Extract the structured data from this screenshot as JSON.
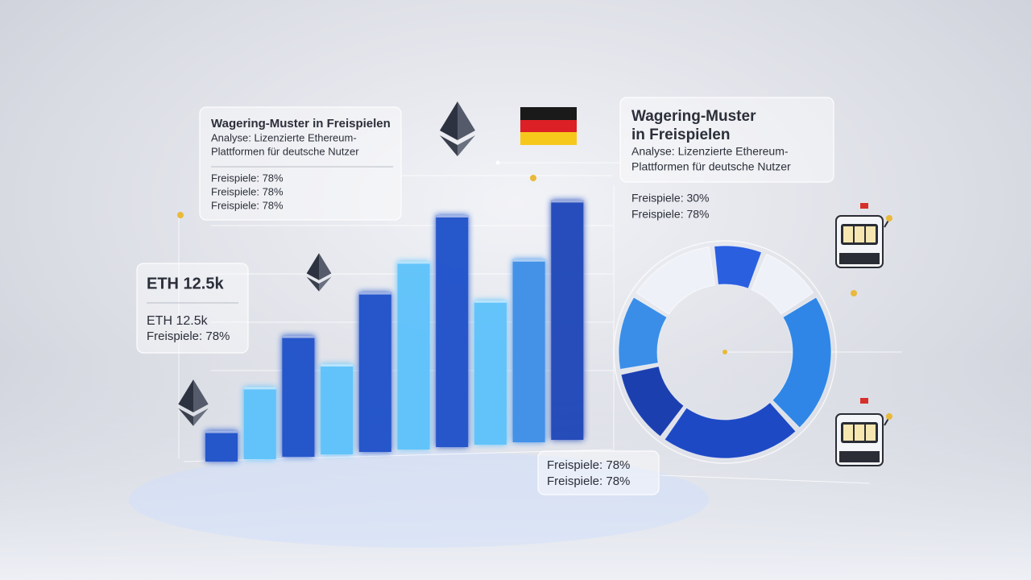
{
  "chart_data": [
    {
      "type": "bar",
      "categories": [
        null,
        null,
        null,
        null,
        null,
        null,
        null,
        null,
        null,
        null
      ],
      "values": [
        12,
        28,
        47,
        35,
        62,
        73,
        90,
        56,
        71,
        93
      ],
      "colors": [
        "#1f4fc9",
        "#5cc2fb",
        "#1f4fc9",
        "#5cc2fb",
        "#1f4fc9",
        "#5cc2fb",
        "#1f4fc9",
        "#5cc2fb",
        "#3a8ee8",
        "#1d44b8"
      ]
    },
    {
      "type": "donut",
      "categories": [
        null,
        null,
        null,
        null,
        null,
        null,
        null
      ],
      "values": [
        8,
        10,
        22,
        22,
        12,
        12,
        14
      ],
      "colors": [
        "#2a5fe0",
        "#eef2f8",
        "#2f86e6",
        "#1e49c4",
        "#1c3fb0",
        "#3a8ee8",
        "#eef2f8"
      ]
    }
  ],
  "panels": [
    {
      "title": [
        "Wagering-Muster in Freispielen"
      ],
      "subtitle": [
        "Analyse: Lizenzierte Ethereum-",
        "Plattformen für deutsche Nutzer"
      ],
      "lines": [
        "Freispiele: 78%",
        "Freispiele: 78%",
        "Freispiele: 78%"
      ]
    },
    {
      "title": [
        "Wagering-Muster",
        "in Freispielen"
      ],
      "subtitle": [
        "Analyse: Lizenzierte Ethereum-",
        "Plattformen für deutsche Nutzer"
      ],
      "lines": [
        "Freispiele: 30%",
        "Freispiele: 78%"
      ]
    },
    {
      "title": [
        "ETH 12.5k"
      ],
      "subtitle": [
        "ETH 12.5k"
      ],
      "lines": [
        "Freispiele: 78%"
      ]
    },
    {
      "title": [],
      "subtitle": [],
      "lines": [
        "Freispiele: 78%",
        "Freispiele: 78%"
      ]
    }
  ]
}
